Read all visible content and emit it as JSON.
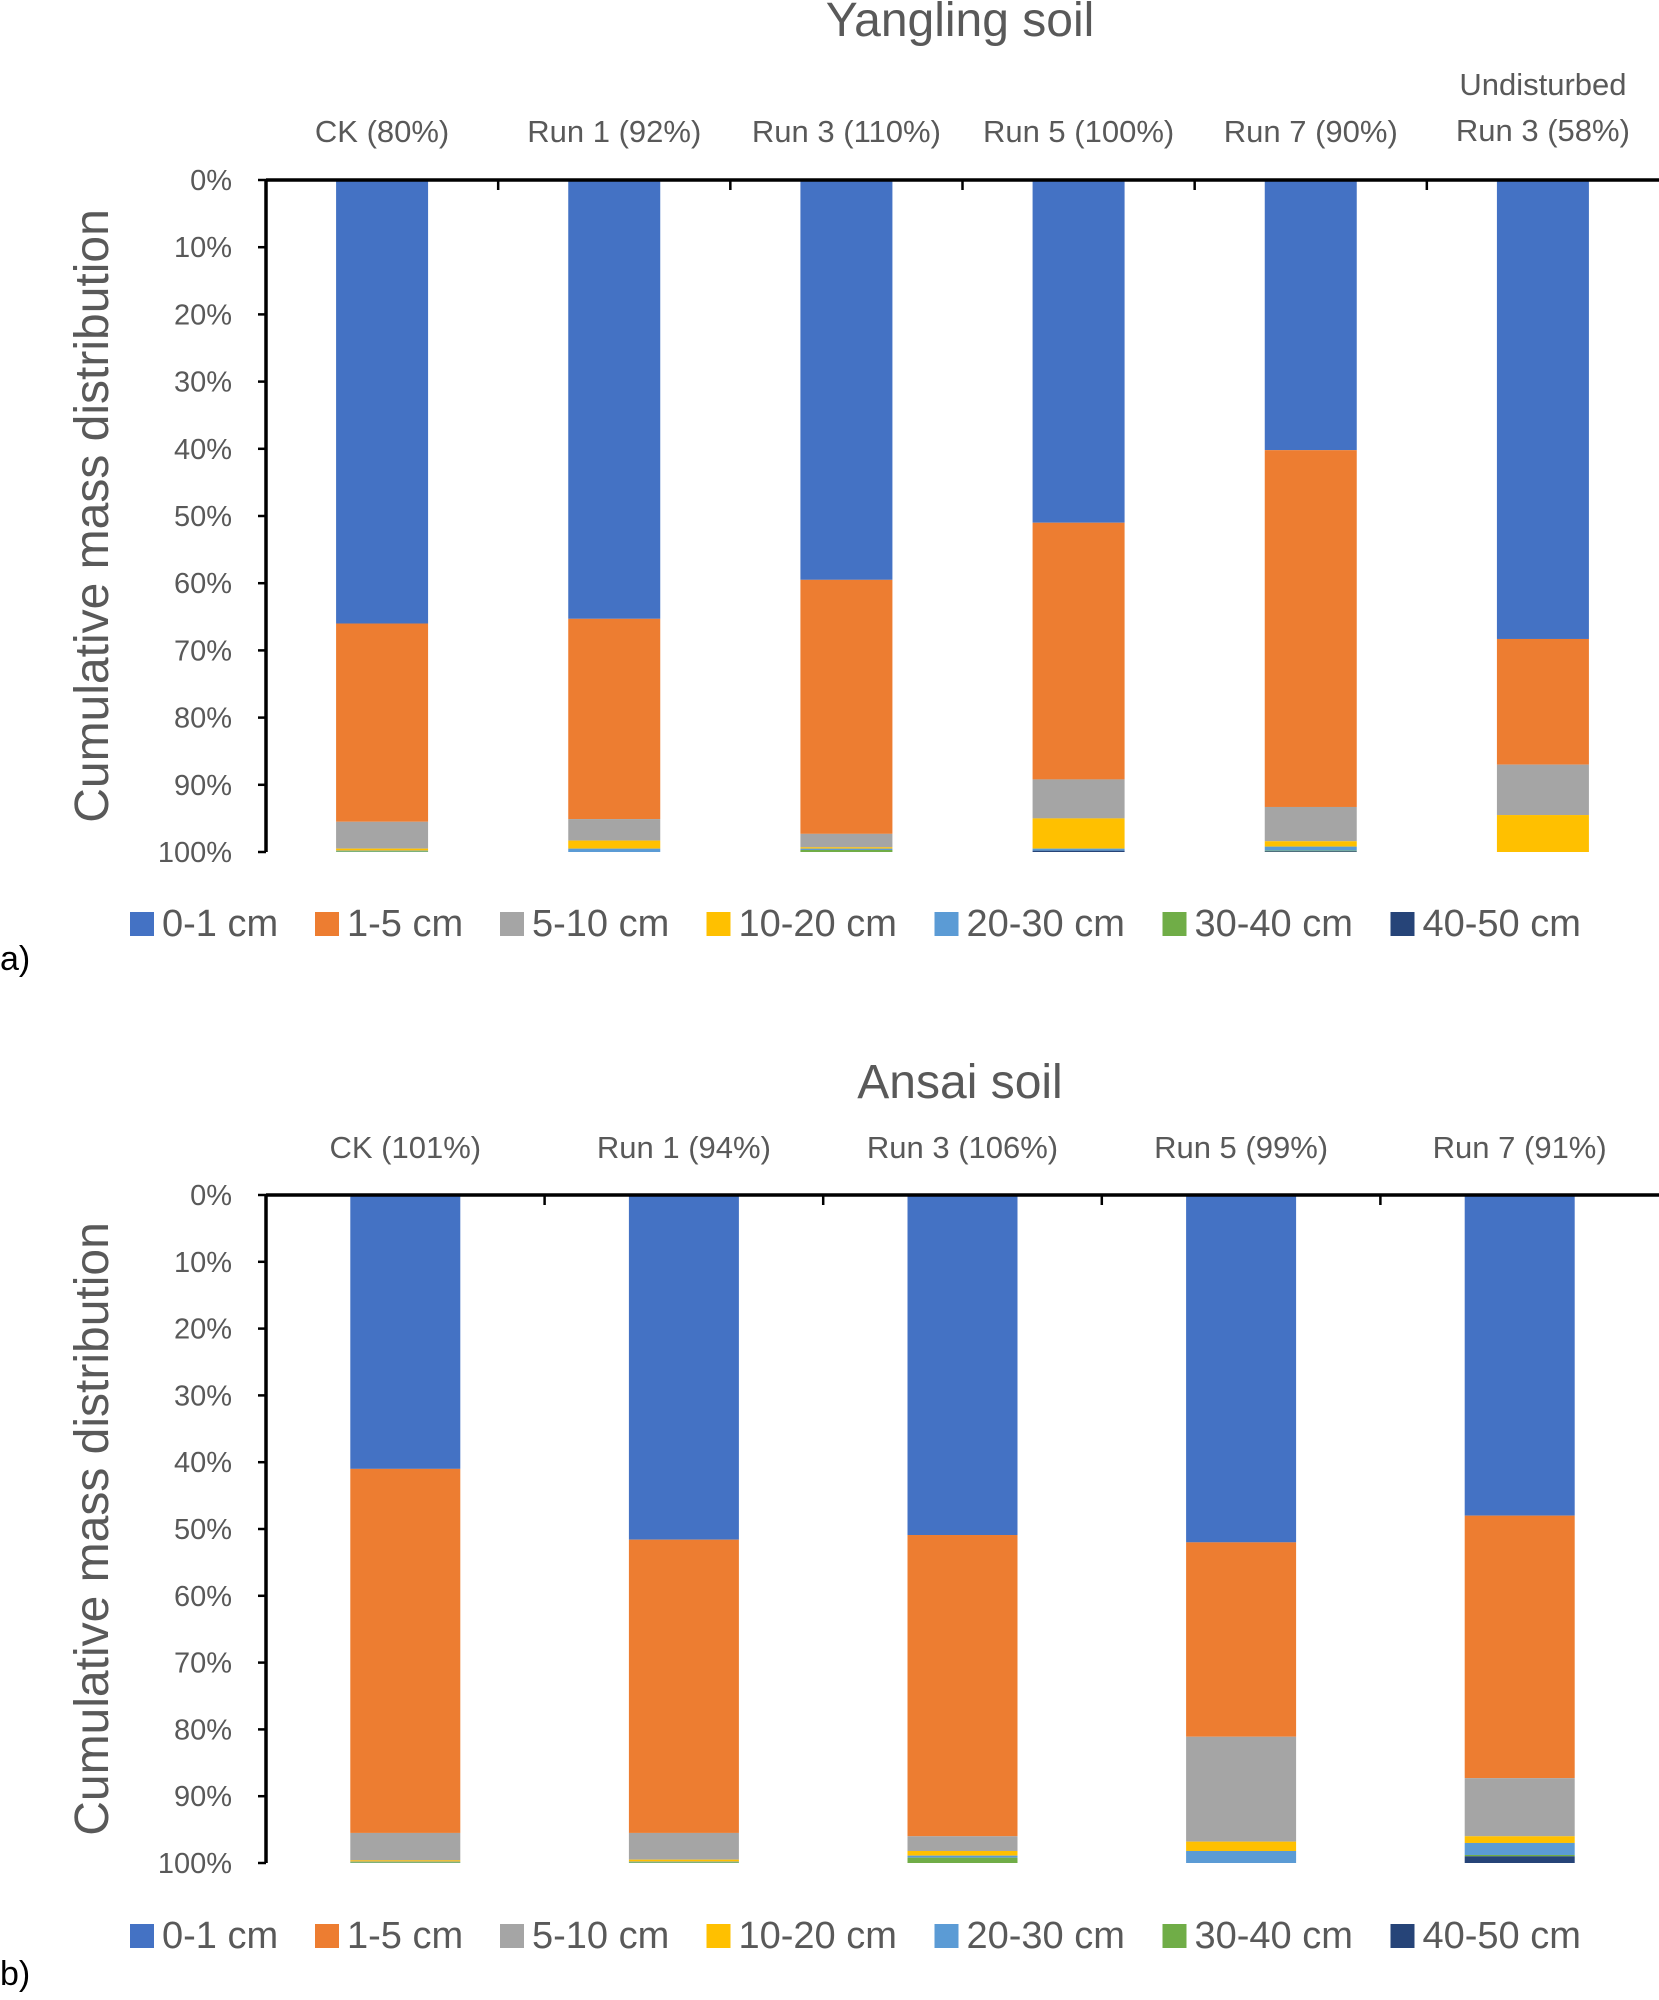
{
  "colors": {
    "0-1 cm": "#4472C4",
    "1-5 cm": "#ED7D31",
    "5-10 cm": "#A5A5A5",
    "10-20 cm": "#FFC000",
    "20-30 cm": "#5B9BD5",
    "30-40 cm": "#70AD47",
    "40-50 cm": "#264478"
  },
  "panel_labels": [
    "a)",
    "b)"
  ],
  "chart_data": [
    {
      "type": "bar",
      "stacked": true,
      "title": "Yangling soil",
      "ylabel": "Cumulative mass distribution",
      "yticks": [
        "0%",
        "10%",
        "20%",
        "30%",
        "40%",
        "50%",
        "60%",
        "70%",
        "80%",
        "90%",
        "100%"
      ],
      "ylim": [
        0,
        100
      ],
      "y_inverted": true,
      "legend_position": "bottom",
      "categories": [
        "CK (80%)",
        "Run 1 (92%)",
        "Run 3 (110%)",
        "Run 5 (100%)",
        "Run 7 (90%)",
        "Undisturbed\nRun 3 (58%)"
      ],
      "series": [
        {
          "name": "0-1 cm",
          "values": [
            66.0,
            65.3,
            59.5,
            51.0,
            40.2,
            68.3
          ]
        },
        {
          "name": "1-5 cm",
          "values": [
            29.5,
            29.8,
            37.8,
            38.2,
            53.1,
            18.7
          ]
        },
        {
          "name": "5-10 cm",
          "values": [
            4.0,
            3.2,
            2.0,
            5.8,
            5.1,
            7.5
          ]
        },
        {
          "name": "10-20 cm",
          "values": [
            0.3,
            1.2,
            0.2,
            4.5,
            0.8,
            5.5
          ]
        },
        {
          "name": "20-30 cm",
          "values": [
            0.1,
            0.5,
            0.2,
            0.3,
            0.6,
            0
          ]
        },
        {
          "name": "30-40 cm",
          "values": [
            0.1,
            0,
            0.3,
            0,
            0.1,
            0
          ]
        },
        {
          "name": "40-50 cm",
          "values": [
            0,
            0,
            0,
            0.2,
            0.1,
            0
          ]
        }
      ]
    },
    {
      "type": "bar",
      "stacked": true,
      "title": "Ansai soil",
      "ylabel": "Cumulative mass distribution",
      "yticks": [
        "0%",
        "10%",
        "20%",
        "30%",
        "40%",
        "50%",
        "60%",
        "70%",
        "80%",
        "90%",
        "100%"
      ],
      "ylim": [
        0,
        100
      ],
      "y_inverted": true,
      "legend_position": "bottom",
      "categories": [
        "CK (101%)",
        "Run 1 (94%)",
        "Run 3 (106%)",
        "Run 5 (99%)",
        "Run 7 (91%)"
      ],
      "series": [
        {
          "name": "0-1 cm",
          "values": [
            41.0,
            51.6,
            50.9,
            52.0,
            48.0
          ]
        },
        {
          "name": "1-5 cm",
          "values": [
            54.5,
            43.9,
            45.1,
            29.1,
            39.3
          ]
        },
        {
          "name": "5-10 cm",
          "values": [
            4.1,
            4.0,
            2.2,
            15.7,
            8.7
          ]
        },
        {
          "name": "10-20 cm",
          "values": [
            0.2,
            0.3,
            0.7,
            1.4,
            1.0
          ]
        },
        {
          "name": "20-30 cm",
          "values": [
            0.1,
            0.1,
            0.3,
            1.8,
            1.8
          ]
        },
        {
          "name": "30-40 cm",
          "values": [
            0.1,
            0.1,
            0.8,
            0,
            0.2
          ]
        },
        {
          "name": "40-50 cm",
          "values": [
            0,
            0,
            0,
            0,
            1.0
          ]
        }
      ]
    }
  ]
}
